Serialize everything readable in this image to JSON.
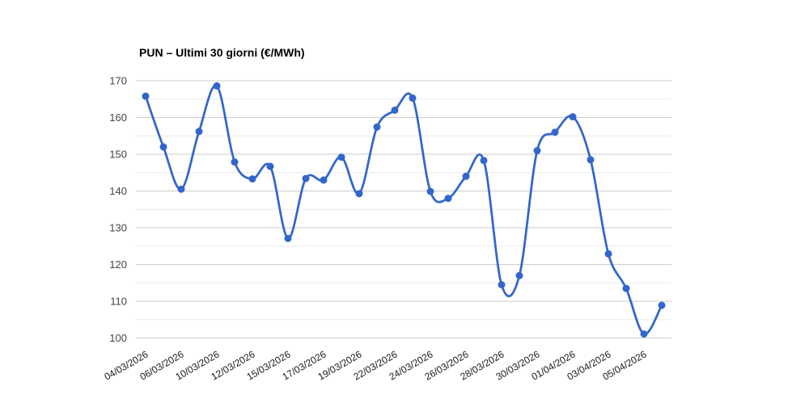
{
  "page": {
    "background_color": "#ffffff"
  },
  "chart_data": {
    "type": "line",
    "title": "PUN – Ultimi 30 giorni (€/MWh)",
    "xlabel": "",
    "ylabel": "",
    "unit": "€/MWh",
    "curve": "smooth",
    "legend": "none",
    "grid": "on",
    "ylim": [
      100,
      170
    ],
    "y_ticks": [
      100,
      110,
      120,
      130,
      140,
      150,
      160,
      170
    ],
    "y_minor_step": 5,
    "x_tick_labels": [
      "04/03/2026",
      "06/03/2026",
      "10/03/2026",
      "12/03/2026",
      "15/03/2026",
      "17/03/2026",
      "19/03/2026",
      "22/03/2026",
      "24/03/2026",
      "26/03/2026",
      "28/03/2026",
      "30/03/2026",
      "01/04/2026",
      "03/04/2026",
      "05/04/2026"
    ],
    "x_label_every_n_points": 2,
    "values": [
      165.8,
      152.0,
      140.5,
      156.2,
      168.6,
      147.9,
      143.3,
      146.7,
      127.1,
      143.4,
      143.0,
      149.2,
      139.3,
      157.4,
      162.0,
      165.3,
      139.9,
      138.0,
      144.0,
      148.3,
      114.5,
      117.0,
      151.0,
      156.0,
      160.2,
      148.5,
      122.9,
      113.5,
      101.1,
      108.9
    ],
    "colors": {
      "line": "#3366cc",
      "point": "#3366cc",
      "grid_major": "#cccccc",
      "grid_minor": "#ececec",
      "y_tick_label": "#444444",
      "x_tick_label": "#1a1a1a"
    }
  }
}
